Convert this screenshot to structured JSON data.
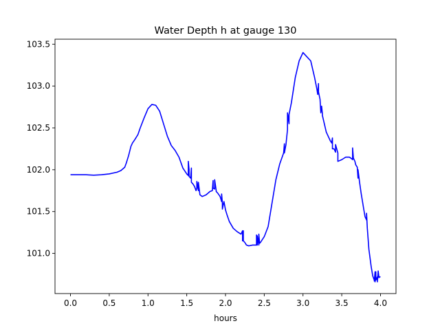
{
  "chart_data": {
    "type": "line",
    "title": "Water Depth h at gauge 130",
    "xlabel": "hours",
    "ylabel": "",
    "xlim": [
      -0.2,
      4.2
    ],
    "ylim": [
      100.52,
      103.56
    ],
    "xticks": [
      0.0,
      0.5,
      1.0,
      1.5,
      2.0,
      2.5,
      3.0,
      3.5,
      4.0
    ],
    "xtick_labels": [
      "0.0",
      "0.5",
      "1.0",
      "1.5",
      "2.0",
      "2.5",
      "3.0",
      "3.5",
      "4.0"
    ],
    "yticks": [
      101.0,
      101.5,
      102.0,
      102.5,
      103.0,
      103.5
    ],
    "ytick_labels": [
      "101.0",
      "101.5",
      "102.0",
      "102.5",
      "103.0",
      "103.5"
    ],
    "grid": false,
    "line_color": "#0000ff",
    "series": [
      {
        "x": [
          0.0,
          0.1,
          0.2,
          0.3,
          0.4,
          0.5,
          0.6,
          0.65,
          0.7,
          0.72,
          0.75,
          0.78,
          0.8,
          0.83,
          0.87,
          0.9,
          0.95,
          1.0,
          1.05,
          1.1,
          1.15,
          1.2,
          1.25,
          1.3,
          1.35,
          1.4,
          1.45,
          1.5,
          1.52,
          1.52,
          1.53,
          1.53,
          1.55,
          1.56,
          1.56,
          1.58,
          1.6,
          1.62,
          1.63,
          1.63,
          1.65,
          1.65,
          1.67,
          1.7,
          1.75,
          1.8,
          1.83,
          1.84,
          1.84,
          1.86,
          1.86,
          1.88,
          1.88,
          1.9,
          1.93,
          1.95,
          1.95,
          1.96,
          1.96,
          1.98,
          2.0,
          2.02,
          2.05,
          2.1,
          2.15,
          2.2,
          2.22,
          2.22,
          2.23,
          2.23,
          2.25,
          2.27,
          2.3,
          2.35,
          2.4,
          2.4,
          2.41,
          2.41,
          2.43,
          2.43,
          2.44,
          2.45,
          2.5,
          2.55,
          2.6,
          2.65,
          2.7,
          2.75,
          2.76,
          2.76,
          2.78,
          2.8,
          2.8,
          2.82,
          2.82,
          2.85,
          2.9,
          2.95,
          3.0,
          3.05,
          3.1,
          3.15,
          3.18,
          3.19,
          3.2,
          3.2,
          3.22,
          3.23,
          3.24,
          3.25,
          3.25,
          3.27,
          3.3,
          3.35,
          3.37,
          3.38,
          3.38,
          3.4,
          3.42,
          3.42,
          3.45,
          3.45,
          3.5,
          3.55,
          3.6,
          3.63,
          3.64,
          3.64,
          3.65,
          3.67,
          3.68,
          3.7,
          3.71,
          3.71,
          3.73,
          3.75,
          3.78,
          3.8,
          3.82,
          3.82,
          3.83,
          3.85,
          3.88,
          3.9,
          3.92,
          3.92,
          3.93,
          3.93,
          3.94,
          3.94,
          3.95,
          3.96,
          3.96,
          3.97,
          3.98,
          3.99,
          4.0
        ],
        "y": [
          101.94,
          101.94,
          101.94,
          101.935,
          101.94,
          101.95,
          101.97,
          101.99,
          102.03,
          102.08,
          102.17,
          102.28,
          102.32,
          102.36,
          102.42,
          102.5,
          102.62,
          102.73,
          102.78,
          102.77,
          102.7,
          102.55,
          102.4,
          102.29,
          102.23,
          102.15,
          102.02,
          101.95,
          101.93,
          102.1,
          102.0,
          101.92,
          101.9,
          102.02,
          101.85,
          101.83,
          101.8,
          101.75,
          101.78,
          101.86,
          101.75,
          101.85,
          101.7,
          101.68,
          101.7,
          101.74,
          101.75,
          101.87,
          101.78,
          101.77,
          101.88,
          101.75,
          101.74,
          101.72,
          101.68,
          101.62,
          101.71,
          101.6,
          101.53,
          101.62,
          101.52,
          101.46,
          101.38,
          101.3,
          101.26,
          101.23,
          101.27,
          101.15,
          101.27,
          101.15,
          101.13,
          101.1,
          101.09,
          101.1,
          101.1,
          101.22,
          101.1,
          101.21,
          101.1,
          101.23,
          101.12,
          101.13,
          101.2,
          101.32,
          101.6,
          101.88,
          102.07,
          102.2,
          102.31,
          102.2,
          102.3,
          102.48,
          102.68,
          102.55,
          102.66,
          102.8,
          103.1,
          103.3,
          103.4,
          103.35,
          103.3,
          103.1,
          102.96,
          102.9,
          103.03,
          102.93,
          102.84,
          102.68,
          102.76,
          102.67,
          102.65,
          102.57,
          102.45,
          102.35,
          102.32,
          102.38,
          102.25,
          102.25,
          102.21,
          102.3,
          102.2,
          102.1,
          102.12,
          102.15,
          102.15,
          102.13,
          102.12,
          102.26,
          102.14,
          102.1,
          102.06,
          102.03,
          101.9,
          102.0,
          101.85,
          101.72,
          101.55,
          101.44,
          101.4,
          101.48,
          101.3,
          101.05,
          100.84,
          100.73,
          100.68,
          100.67,
          100.78,
          100.66,
          100.78,
          100.68,
          100.7,
          100.72,
          100.66,
          100.79,
          100.71,
          100.72,
          100.72
        ]
      }
    ]
  }
}
